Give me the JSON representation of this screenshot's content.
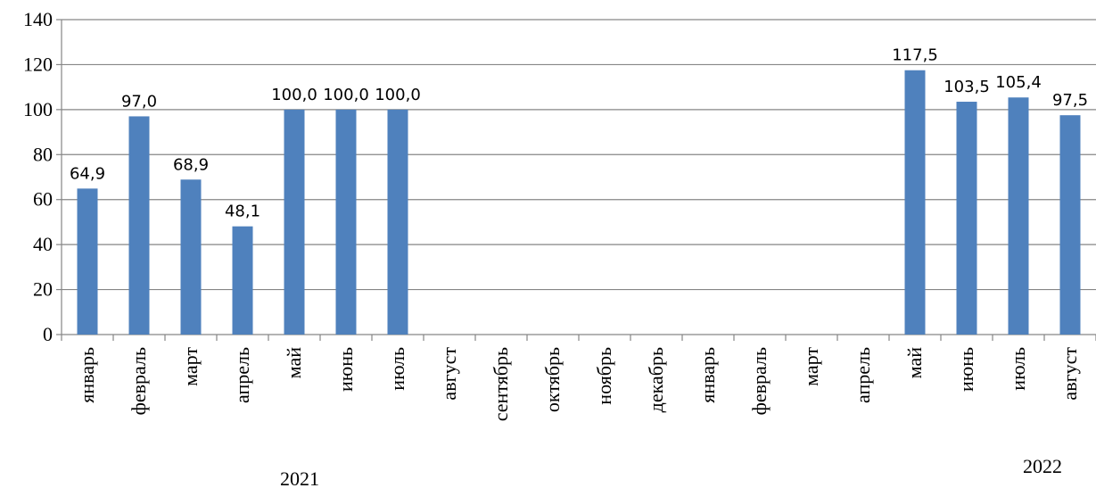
{
  "chart_data": {
    "type": "bar",
    "categories": [
      "январь",
      "февраль",
      "март",
      "апрель",
      "май",
      "июнь",
      "июль",
      "август",
      "сентябрь",
      "октябрь",
      "ноябрь",
      "декабрь",
      "январь",
      "февраль",
      "март",
      "апрель",
      "май",
      "июнь",
      "июль",
      "август"
    ],
    "values": [
      64.9,
      97.0,
      68.9,
      48.1,
      100.0,
      100.0,
      100.0,
      null,
      null,
      null,
      null,
      null,
      null,
      null,
      null,
      null,
      117.5,
      103.5,
      105.4,
      97.5
    ],
    "data_labels": [
      "64,9",
      "97,0",
      "68,9",
      "48,1",
      "100,0",
      "100,0",
      "100,0",
      "",
      "",
      "",
      "",
      "",
      "",
      "",
      "",
      "",
      "117,5",
      "103,5",
      "105,4",
      "97,5"
    ],
    "year_labels": [
      "2021",
      "2022"
    ],
    "yticks": [
      "0",
      "20",
      "40",
      "60",
      "80",
      "100",
      "120",
      "140"
    ],
    "ylim": [
      0,
      140
    ],
    "grid": true,
    "legend": "none",
    "bar_color": "#4f81bd",
    "grid_color": "#868686"
  }
}
